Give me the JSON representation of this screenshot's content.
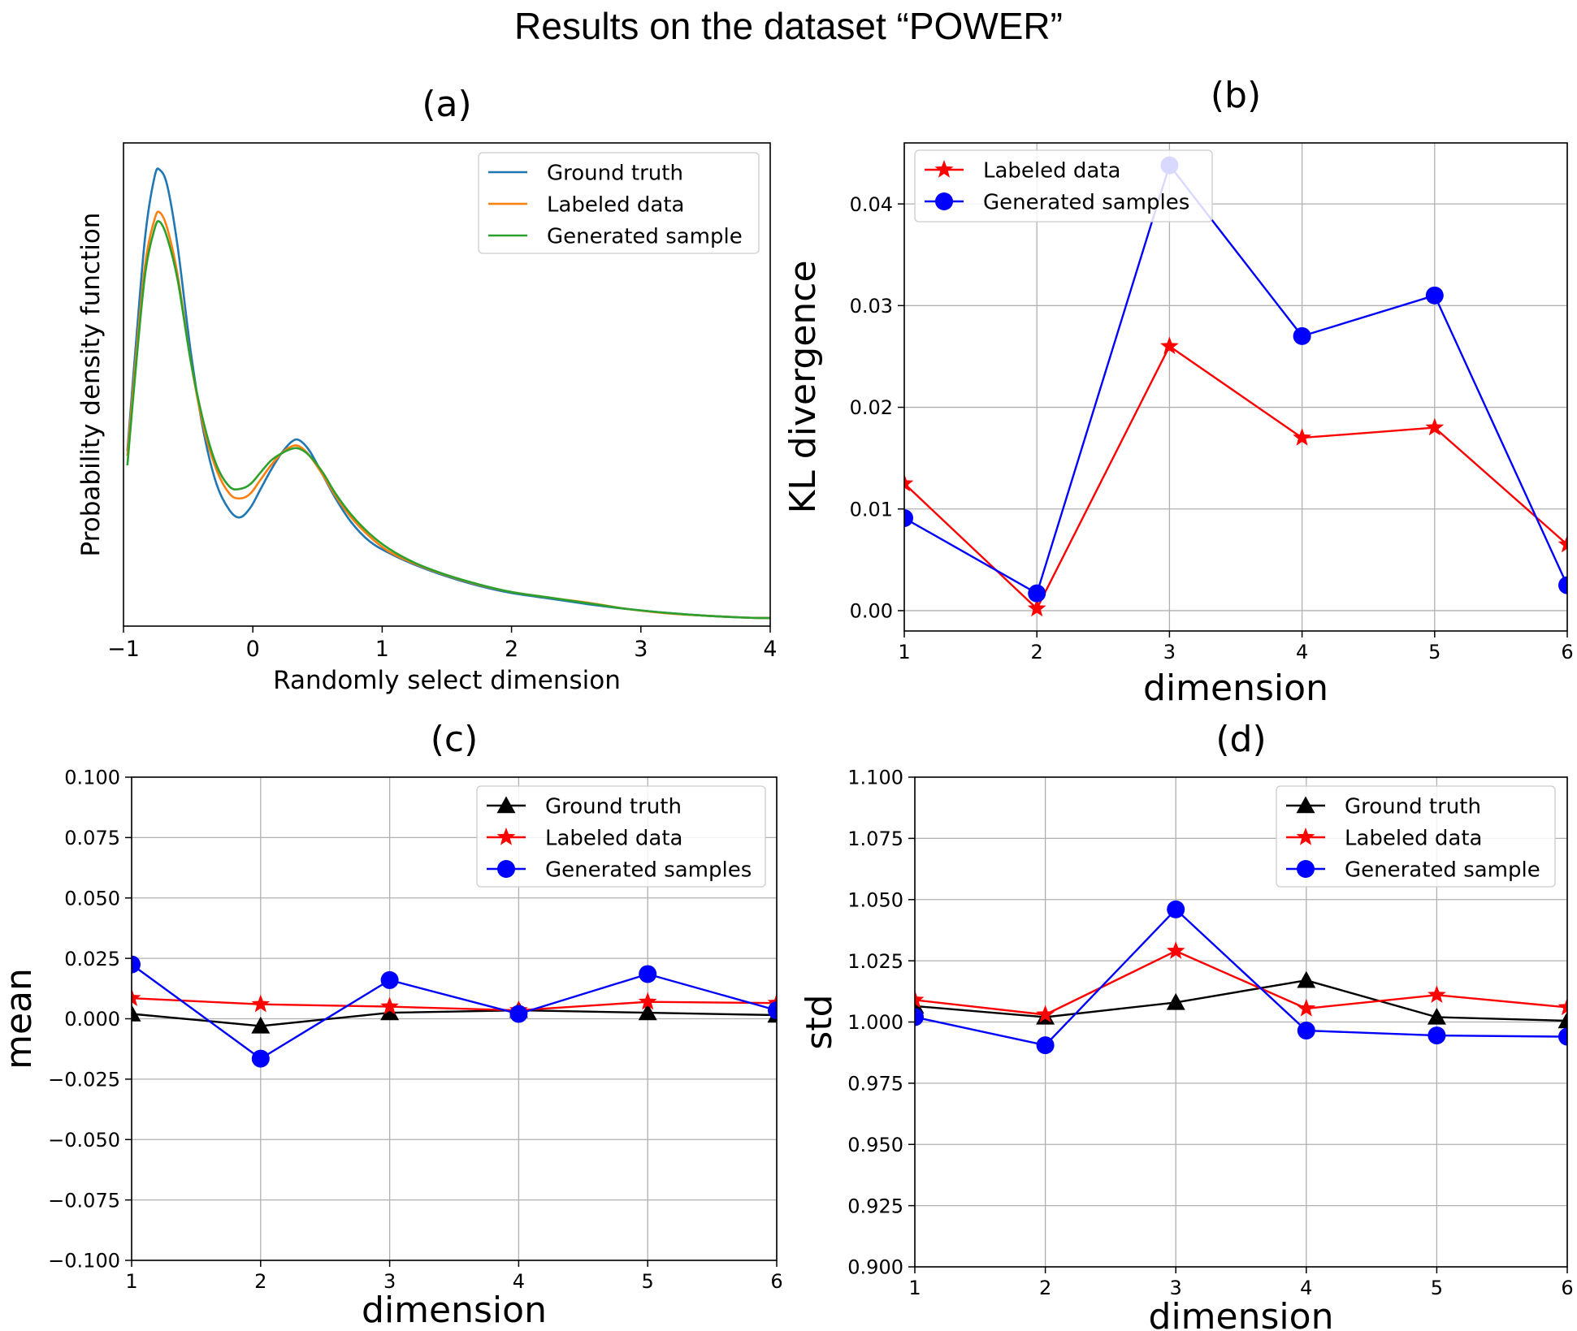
{
  "title": "Results on the dataset “POWER”",
  "chart_data": [
    {
      "panel": "(a)",
      "type": "line",
      "title": "(a)",
      "xlabel": "Randomly select dimension",
      "ylabel": "Probability density function",
      "xlim": [
        -1,
        4
      ],
      "xticks": [
        "−1",
        "0",
        "1",
        "2",
        "3",
        "4"
      ],
      "yticks_shown": false,
      "grid": false,
      "legend": "top-right",
      "series": [
        {
          "name": "Ground truth",
          "color": "#1f77b4",
          "x": [
            -0.97,
            -0.9,
            -0.83,
            -0.76,
            -0.72,
            -0.66,
            -0.58,
            -0.48,
            -0.38,
            -0.28,
            -0.18,
            -0.1,
            -0.02,
            0.06,
            0.14,
            0.22,
            0.3,
            0.36,
            0.44,
            0.54,
            0.64,
            0.76,
            0.9,
            1.05,
            1.25,
            1.5,
            1.75,
            2.0,
            2.3,
            2.6,
            2.9,
            3.2,
            3.5,
            3.8,
            4.0
          ],
          "y": [
            0.39,
            0.63,
            0.85,
            0.97,
            0.985,
            0.95,
            0.82,
            0.6,
            0.43,
            0.32,
            0.265,
            0.25,
            0.27,
            0.31,
            0.35,
            0.385,
            0.41,
            0.413,
            0.39,
            0.34,
            0.29,
            0.24,
            0.2,
            0.175,
            0.15,
            0.125,
            0.105,
            0.09,
            0.078,
            0.066,
            0.056,
            0.048,
            0.042,
            0.038,
            0.037
          ]
        },
        {
          "name": "Labeled data",
          "color": "#ff7f0e",
          "x": [
            -0.97,
            -0.9,
            -0.83,
            -0.76,
            -0.72,
            -0.66,
            -0.58,
            -0.48,
            -0.38,
            -0.28,
            -0.18,
            -0.1,
            -0.02,
            0.06,
            0.14,
            0.22,
            0.3,
            0.36,
            0.44,
            0.54,
            0.64,
            0.76,
            0.9,
            1.05,
            1.25,
            1.5,
            1.75,
            2.0,
            2.3,
            2.6,
            2.9,
            3.2,
            3.5,
            3.8,
            4.0
          ],
          "y": [
            0.38,
            0.6,
            0.79,
            0.88,
            0.895,
            0.86,
            0.76,
            0.58,
            0.44,
            0.35,
            0.3,
            0.29,
            0.3,
            0.33,
            0.36,
            0.385,
            0.4,
            0.4,
            0.38,
            0.34,
            0.295,
            0.25,
            0.21,
            0.178,
            0.152,
            0.127,
            0.107,
            0.092,
            0.08,
            0.069,
            0.056,
            0.047,
            0.042,
            0.038,
            0.037
          ]
        },
        {
          "name": "Generated sample",
          "color": "#2ca02c",
          "x": [
            -0.97,
            -0.9,
            -0.83,
            -0.76,
            -0.72,
            -0.66,
            -0.58,
            -0.48,
            -0.38,
            -0.28,
            -0.18,
            -0.1,
            -0.02,
            0.06,
            0.14,
            0.22,
            0.3,
            0.36,
            0.44,
            0.54,
            0.64,
            0.76,
            0.9,
            1.05,
            1.25,
            1.5,
            1.75,
            2.0,
            2.3,
            2.6,
            2.9,
            3.2,
            3.5,
            3.8,
            4.0
          ],
          "y": [
            0.36,
            0.58,
            0.77,
            0.86,
            0.875,
            0.84,
            0.75,
            0.58,
            0.45,
            0.36,
            0.315,
            0.31,
            0.32,
            0.345,
            0.37,
            0.385,
            0.395,
            0.395,
            0.38,
            0.345,
            0.3,
            0.256,
            0.216,
            0.184,
            0.154,
            0.128,
            0.108,
            0.092,
            0.08,
            0.068,
            0.056,
            0.048,
            0.042,
            0.038,
            0.037
          ]
        }
      ]
    },
    {
      "panel": "(b)",
      "type": "line",
      "title": "(b)",
      "xlabel": "dimension",
      "ylabel": "KL divergence",
      "xlim": [
        1,
        6
      ],
      "ylim": [
        -0.002,
        0.046
      ],
      "xticks": [
        "1",
        "2",
        "3",
        "4",
        "5",
        "6"
      ],
      "yticks": [
        0.0,
        0.01,
        0.02,
        0.03,
        0.04
      ],
      "ytick_labels": [
        "0.00",
        "0.01",
        "0.02",
        "0.03",
        "0.04"
      ],
      "grid": true,
      "legend": "top-left",
      "categories": [
        1,
        2,
        3,
        4,
        5,
        6
      ],
      "series": [
        {
          "name": "Labeled data",
          "color": "#ff0000",
          "marker": "star",
          "values": [
            0.0125,
            0.0002,
            0.026,
            0.017,
            0.018,
            0.0065
          ]
        },
        {
          "name": "Generated samples",
          "color": "#0000ff",
          "marker": "circle",
          "values": [
            0.0091,
            0.0017,
            0.0438,
            0.027,
            0.031,
            0.0025
          ]
        }
      ]
    },
    {
      "panel": "(c)",
      "type": "line",
      "title": "(c)",
      "xlabel": "dimension",
      "ylabel": "mean",
      "xlim": [
        1,
        6
      ],
      "ylim": [
        -0.1,
        0.1
      ],
      "xticks": [
        "1",
        "2",
        "3",
        "4",
        "5",
        "6"
      ],
      "yticks": [
        -0.1,
        -0.075,
        -0.05,
        -0.025,
        0.0,
        0.025,
        0.05,
        0.075,
        0.1
      ],
      "ytick_labels": [
        "−0.100",
        "−0.075",
        "−0.050",
        "−0.025",
        "0.000",
        "0.025",
        "0.050",
        "0.075",
        "0.100"
      ],
      "grid": true,
      "legend": "top-right",
      "categories": [
        1,
        2,
        3,
        4,
        5,
        6
      ],
      "series": [
        {
          "name": "Ground truth",
          "color": "#000000",
          "marker": "triangle",
          "values": [
            0.002,
            -0.003,
            0.0025,
            0.0035,
            0.0025,
            0.0015
          ]
        },
        {
          "name": "Labeled data",
          "color": "#ff0000",
          "marker": "star",
          "values": [
            0.0085,
            0.006,
            0.005,
            0.0035,
            0.007,
            0.0065
          ]
        },
        {
          "name": "Generated samples",
          "color": "#0000ff",
          "marker": "circle",
          "values": [
            0.0225,
            -0.0165,
            0.016,
            0.002,
            0.0185,
            0.0035
          ]
        }
      ]
    },
    {
      "panel": "(d)",
      "type": "line",
      "title": "(d)",
      "xlabel": "dimension",
      "ylabel": "std",
      "xlim": [
        1,
        6
      ],
      "ylim": [
        0.9,
        1.1
      ],
      "xticks": [
        "1",
        "2",
        "3",
        "4",
        "5",
        "6"
      ],
      "yticks": [
        0.9,
        0.925,
        0.95,
        0.975,
        1.0,
        1.025,
        1.05,
        1.075,
        1.1
      ],
      "ytick_labels": [
        "0.900",
        "0.925",
        "0.950",
        "0.975",
        "1.000",
        "1.025",
        "1.050",
        "1.075",
        "1.100"
      ],
      "grid": true,
      "legend": "top-right",
      "categories": [
        1,
        2,
        3,
        4,
        5,
        6
      ],
      "series": [
        {
          "name": "Ground truth",
          "color": "#000000",
          "marker": "triangle",
          "values": [
            1.0065,
            1.002,
            1.008,
            1.017,
            1.002,
            1.0005
          ]
        },
        {
          "name": "Labeled data",
          "color": "#ff0000",
          "marker": "star",
          "values": [
            1.009,
            1.003,
            1.029,
            1.0055,
            1.011,
            1.006
          ]
        },
        {
          "name": "Generated sample",
          "color": "#0000ff",
          "marker": "circle",
          "values": [
            1.002,
            0.9905,
            1.046,
            0.9965,
            0.9945,
            0.994
          ]
        }
      ]
    }
  ]
}
